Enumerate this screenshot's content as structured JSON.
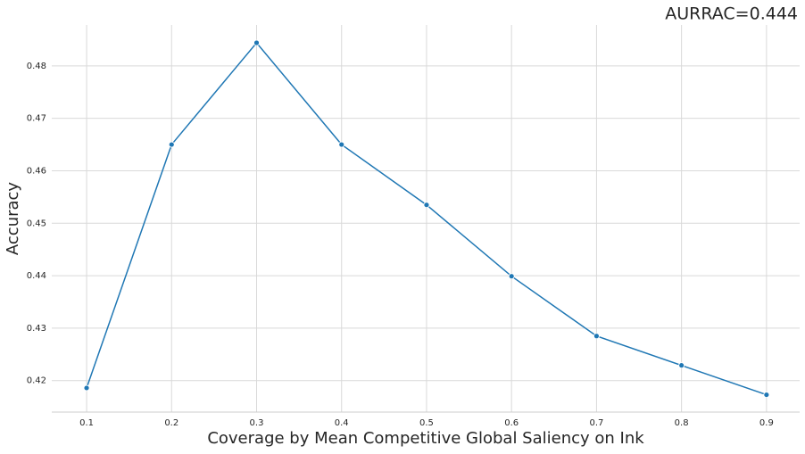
{
  "chart_data": {
    "type": "line",
    "title": "AURRAC=0.444",
    "x_label": "Coverage by Mean Competitive Global Saliency on Ink",
    "y_label": "Accuracy",
    "x": [
      0.1,
      0.2,
      0.3,
      0.4,
      0.5,
      0.6,
      0.7,
      0.8,
      0.9
    ],
    "series": [
      {
        "color": "#1f77b4",
        "values": [
          0.4186,
          0.465,
          0.4844,
          0.465,
          0.4535,
          0.4399,
          0.4285,
          0.4229,
          0.4173
        ]
      }
    ],
    "xlim": [
      0.059,
      0.939
    ],
    "ylim": [
      0.414,
      0.4878
    ],
    "xticks": [
      0.1,
      0.2,
      0.3,
      0.4,
      0.5,
      0.6,
      0.7,
      0.8,
      0.9
    ],
    "yticks": [
      0.42,
      0.43,
      0.44,
      0.45,
      0.46,
      0.47,
      0.48
    ],
    "grid": true,
    "markers": true
  }
}
